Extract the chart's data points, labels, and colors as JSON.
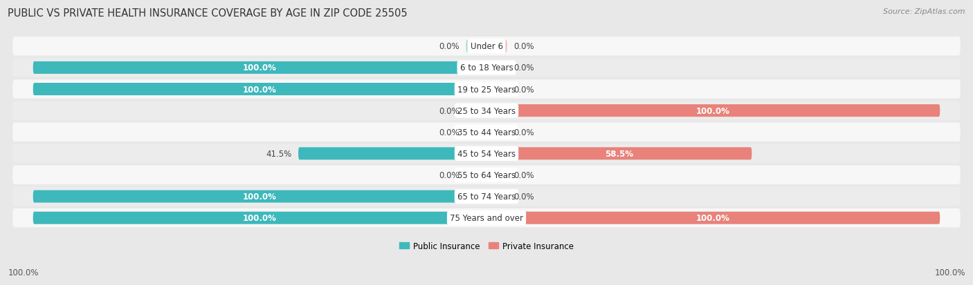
{
  "title": "PUBLIC VS PRIVATE HEALTH INSURANCE COVERAGE BY AGE IN ZIP CODE 25505",
  "source": "Source: ZipAtlas.com",
  "categories": [
    "Under 6",
    "6 to 18 Years",
    "19 to 25 Years",
    "25 to 34 Years",
    "35 to 44 Years",
    "45 to 54 Years",
    "55 to 64 Years",
    "65 to 74 Years",
    "75 Years and over"
  ],
  "public_values": [
    0.0,
    100.0,
    100.0,
    0.0,
    0.0,
    41.5,
    0.0,
    100.0,
    100.0
  ],
  "private_values": [
    0.0,
    0.0,
    0.0,
    100.0,
    0.0,
    58.5,
    0.0,
    0.0,
    100.0
  ],
  "public_color": "#3db8bb",
  "private_color": "#e8827a",
  "public_color_light": "#9dd5d6",
  "private_color_light": "#f2b3ad",
  "row_colors": [
    "#f7f7f7",
    "#ececec"
  ],
  "title_fontsize": 10.5,
  "source_fontsize": 8,
  "label_fontsize": 8.5,
  "cat_fontsize": 8.5,
  "bar_height": 0.58,
  "figsize": [
    14.06,
    4.14
  ],
  "dpi": 100,
  "xlim": 100,
  "stub_size": 4.5
}
